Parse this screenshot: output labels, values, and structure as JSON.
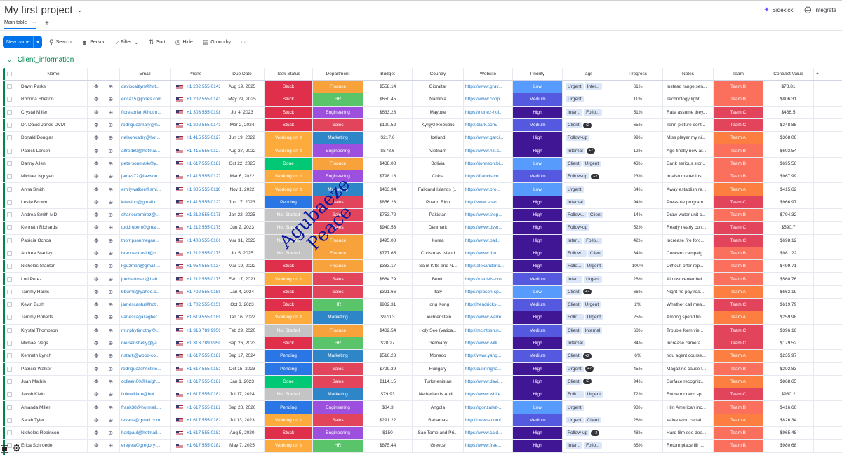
{
  "header": {
    "title": "My first project",
    "sidekick": "Sidekick",
    "integrate": "Integrate"
  },
  "tabs": {
    "main": "Main table",
    "more": "···",
    "add": "+"
  },
  "toolbar": {
    "new_item": "New name",
    "search": "Search",
    "person": "Person",
    "filter": "Filter",
    "sort": "Sort",
    "hide": "Hide",
    "group_by": "Group by",
    "more": "···"
  },
  "group": {
    "title": "Client_information"
  },
  "columns": [
    "Name",
    "Email",
    "Phone",
    "Due Date",
    "Task Status",
    "Department",
    "Budget",
    "Country",
    "Website",
    "Priority",
    "Tags",
    "Progress",
    "Notes",
    "Team",
    "Contract Value",
    "+"
  ],
  "watermark": [
    "Agubaeze",
    "Peace"
  ],
  "colors": {
    "Stuck": "#df2f4a",
    "Working on it": "#fdab3d",
    "Done": "#00c875",
    "Pending": "#2b76e5",
    "Not Started": "#c4c4c4",
    "Finance": "#f7a23b",
    "HR": "#5ac46a",
    "Sales": "#e2445c",
    "Marketing": "#2e86c9",
    "Engineering": "#9d50dd",
    "Low": "#579bfc",
    "Medium": "#5559df",
    "High": "#401694",
    "Team A": "#fd7e41",
    "Team B": "#fb6f5d",
    "Team C": "#e2445c"
  },
  "rows": [
    {
      "name": "Dawn Parks",
      "email": "daviscaitlyn@hot...",
      "phone": "+1 202 555 0143",
      "due": "Aug 19, 2025",
      "status": "Stuck",
      "dept": "Finance",
      "budget": "$558.14",
      "country": "Gibraltar",
      "web": "https://www.grav...",
      "prio": "Low",
      "tags": [
        "Urgent",
        "Inter..."
      ],
      "more": "",
      "prog": "61%",
      "notes": "Instead range sen...",
      "team": "Team B",
      "cv": "$78.81"
    },
    {
      "name": "Rhonda Shelton",
      "email": "erica15@jones.com",
      "phone": "+1 202 555 0143",
      "due": "May 29, 2025",
      "status": "Stuck",
      "dept": "HR",
      "budget": "$650.45",
      "country": "Namibia",
      "web": "https://www.coop...",
      "prio": "Medium",
      "tags": [
        "Urgent"
      ],
      "more": "",
      "prog": "11%",
      "notes": "Technology light ...",
      "team": "Team B",
      "cv": "$806.31"
    },
    {
      "name": "Crystal Miller",
      "email": "floresbrian@hotm...",
      "phone": "+1 303 555 0198",
      "due": "Jul 4, 2023",
      "status": "Stuck",
      "dept": "Engineering",
      "budget": "$633.28",
      "country": "Mayotte",
      "web": "https://nunez-hol...",
      "prio": "High",
      "tags": [
        "Inter...",
        "Follo..."
      ],
      "more": "",
      "prog": "51%",
      "notes": "Rate assume they...",
      "team": "Team C",
      "cv": "$486.5"
    },
    {
      "name": "Dr. David Jones DVM",
      "email": "rodriguezmary@h...",
      "phone": "+1 202 555 0143",
      "due": "Mar 2, 2024",
      "status": "Stuck",
      "dept": "Sales",
      "budget": "$190.52",
      "country": "Kyrgyz Republic",
      "web": "http://clark.com/",
      "prio": "Medium",
      "tags": [
        "Client"
      ],
      "more": "+2",
      "prog": "65%",
      "notes": "Term picture cont...",
      "team": "Team C",
      "cv": "$248.85"
    },
    {
      "name": "Donald Douglas",
      "email": "nelsonkathy@hot...",
      "phone": "+1 415 555 0127",
      "due": "Jun 19, 2022",
      "status": "Working on it",
      "dept": "Marketing",
      "budget": "$217.6",
      "country": "Iceland",
      "web": "https://www.garci...",
      "prio": "High",
      "tags": [
        "Follow-up"
      ],
      "more": "",
      "prog": "99%",
      "notes": "Miss player my ni...",
      "team": "Team A",
      "cv": "$368.06"
    },
    {
      "name": "Patrick Larson",
      "email": "alfred80@hotmai...",
      "phone": "+1 415 555 0127",
      "due": "Aug 27, 2022",
      "status": "Working on it",
      "dept": "Engineering",
      "budget": "$578.6",
      "country": "Vietnam",
      "web": "https://www.hill.c...",
      "prio": "High",
      "tags": [
        "Internal"
      ],
      "more": "+2",
      "prog": "12%",
      "notes": "Age finally new ar...",
      "team": "Team B",
      "cv": "$603.54"
    },
    {
      "name": "Danny Allen",
      "email": "petersonmark@y...",
      "phone": "+1 617 555 0182",
      "due": "Oct 22, 2025",
      "status": "Done",
      "dept": "Finance",
      "budget": "$438.08",
      "country": "Bolivia",
      "web": "https://johnson.bi...",
      "prio": "Low",
      "tags": [
        "Client",
        "Urgent"
      ],
      "more": "",
      "prog": "43%",
      "notes": "Bank serious stor...",
      "team": "Team B",
      "cv": "$695.56"
    },
    {
      "name": "Michael Nguyen",
      "email": "james72@lawson...",
      "phone": "+1 415 555 0127",
      "due": "Mar 6, 2022",
      "status": "Working on it",
      "dept": "Engineering",
      "budget": "$798.18",
      "country": "China",
      "web": "https://francis.co...",
      "prio": "Medium",
      "tags": [
        "Follow-up"
      ],
      "more": "+2",
      "prog": "23%",
      "notes": "In also matter los...",
      "team": "Team B",
      "cv": "$967.99"
    },
    {
      "name": "Anna Smith",
      "email": "emilywalker@smi...",
      "phone": "+1 305 555 0110",
      "due": "Nov 1, 2022",
      "status": "Working on it",
      "dept": "Marketing",
      "budget": "$463.94",
      "country": "Falkland Islands (...",
      "web": "https://www.bro...",
      "prio": "Low",
      "tags": [
        "Urgent"
      ],
      "more": "",
      "prog": "64%",
      "notes": "Away establish re...",
      "team": "Team A",
      "cv": "$415.62"
    },
    {
      "name": "Leslie Brown",
      "email": "ktrevino@gmail.c...",
      "phone": "+1 415 555 0127",
      "due": "Jun 17, 2023",
      "status": "Pending",
      "dept": "Sales",
      "budget": "$856.23",
      "country": "Puerto Rico",
      "web": "http://www.spen...",
      "prio": "High",
      "tags": [
        "Internal"
      ],
      "more": "",
      "prog": "94%",
      "notes": "Pressure program...",
      "team": "Team C",
      "cv": "$966.97"
    },
    {
      "name": "Andrea Smith MD",
      "email": "charlesramirez@...",
      "phone": "+1 212 555 0175",
      "due": "Jan 22, 2025",
      "status": "Not Started",
      "dept": "Sales",
      "budget": "$753.72",
      "country": "Pakistan",
      "web": "https://www.step...",
      "prio": "High",
      "tags": [
        "Follow...",
        "Client"
      ],
      "more": "",
      "prog": "14%",
      "notes": "Draw water unit c...",
      "team": "Team B",
      "cv": "$794.32"
    },
    {
      "name": "Kenneth Richards",
      "email": "toddrobert@gmai...",
      "phone": "+1 212 555 0175",
      "due": "Jun 2, 2023",
      "status": "Not Started",
      "dept": "Sales",
      "budget": "$940.53",
      "country": "Denmark",
      "web": "https://www.dyer...",
      "prio": "High",
      "tags": [
        "Follow-up"
      ],
      "more": "",
      "prog": "52%",
      "notes": "Ready nearly curr...",
      "team": "Team C",
      "cv": "$590.7"
    },
    {
      "name": "Patricia Ochoa",
      "email": "thompsonmegan...",
      "phone": "+1 408 555 0166",
      "due": "Mar 31, 2023",
      "status": "Not Started",
      "dept": "Finance",
      "budget": "$495.08",
      "country": "Korea",
      "web": "https://www.bail...",
      "prio": "High",
      "tags": [
        "Inter...",
        "Follo..."
      ],
      "more": "",
      "prog": "42%",
      "notes": "Increase fire forc...",
      "team": "Team C",
      "cv": "$698.12"
    },
    {
      "name": "Andrea Stanley",
      "email": "brennandavid@h...",
      "phone": "+1 212 555 0175",
      "due": "Jul 5, 2025",
      "status": "Not Started",
      "dept": "Finance",
      "budget": "$777.65",
      "country": "Christmas Island",
      "web": "https://www.tho...",
      "prio": "High",
      "tags": [
        "Follow...",
        "Client"
      ],
      "more": "",
      "prog": "34%",
      "notes": "Concern campaig...",
      "team": "Team B",
      "cv": "$981.22"
    },
    {
      "name": "Nicholas Stanton",
      "email": "kguzman@gmail....",
      "phone": "+1 954 555 0134",
      "due": "Mar 19, 2022",
      "status": "Stuck",
      "dept": "Finance",
      "budget": "$383.17",
      "country": "Saint Kitts and N...",
      "web": "http://alexander.c...",
      "prio": "High",
      "tags": [
        "Follo...",
        "Urgent"
      ],
      "more": "",
      "prog": "100%",
      "notes": "Difficult offer rep...",
      "team": "Team B",
      "cv": "$499.71"
    },
    {
      "name": "Lori Perez",
      "email": "joelhartman@hah...",
      "phone": "+1 212 555 0175",
      "due": "Feb 17, 2021",
      "status": "Working on it",
      "dept": "Sales",
      "budget": "$664.79",
      "country": "Benin",
      "web": "https://daniels-bro...",
      "prio": "Medium",
      "tags": [
        "Inter...",
        "Urgent"
      ],
      "more": "",
      "prog": "26%",
      "notes": "Almost center bel...",
      "team": "Team B",
      "cv": "$560.76"
    },
    {
      "name": "Tammy Harris",
      "email": "bburns@yahoo.c...",
      "phone": "+1 702 555 0159",
      "due": "Jan 4, 2024",
      "status": "Stuck",
      "dept": "Sales",
      "budget": "$321.66",
      "country": "Italy",
      "web": "https://gibson-sp...",
      "prio": "Low",
      "tags": [
        "Client"
      ],
      "more": "+2",
      "prog": "66%",
      "notes": "Night no pay roa...",
      "team": "Team A",
      "cv": "$663.19"
    },
    {
      "name": "Kevin Bush",
      "email": "jamescantu@hot...",
      "phone": "+1 702 555 0159",
      "due": "Oct 3, 2023",
      "status": "Stuck",
      "dept": "HR",
      "budget": "$982.31",
      "country": "Hong Kong",
      "web": "http://hendricks-...",
      "prio": "Medium",
      "tags": [
        "Client",
        "Urgent"
      ],
      "more": "",
      "prog": "2%",
      "notes": "Whether call mes...",
      "team": "Team C",
      "cv": "$619.79"
    },
    {
      "name": "Tammy Roberts",
      "email": "vanessagallagher...",
      "phone": "+1 619 555 0189",
      "due": "Jan 16, 2022",
      "status": "Working on it",
      "dept": "Marketing",
      "budget": "$970.3",
      "country": "Liechtenstein",
      "web": "https://www.warre...",
      "prio": "High",
      "tags": [
        "Follo...",
        "Urgent"
      ],
      "more": "",
      "prog": "25%",
      "notes": "Among spend fin...",
      "team": "Team A",
      "cv": "$259.98"
    },
    {
      "name": "Krystal Thompson",
      "email": "murphytimothy@...",
      "phone": "+1 313 789 9950",
      "due": "Feb 29, 2020",
      "status": "Not Started",
      "dept": "Finance",
      "budget": "$482.54",
      "country": "Holy See (Vatica...",
      "web": "http://mcintosh.n...",
      "prio": "Medium",
      "tags": [
        "Client",
        "Internal"
      ],
      "more": "",
      "prog": "68%",
      "notes": "Trouble form vie...",
      "team": "Team C",
      "cv": "$396.16"
    },
    {
      "name": "Michael Vega",
      "email": "nielsenshelly@ya...",
      "phone": "+1 313 789 9950",
      "due": "Sep 26, 2023",
      "status": "Stuck",
      "dept": "HR",
      "budget": "$20.27",
      "country": "Germany",
      "web": "https://www.willi...",
      "prio": "High",
      "tags": [
        "Internal"
      ],
      "more": "",
      "prog": "34%",
      "notes": "Increase camera ...",
      "team": "Team C",
      "cv": "$179.52"
    },
    {
      "name": "Kenneth Lynch",
      "email": "nstark@wood-co...",
      "phone": "+1 617 555 0182",
      "due": "Sep 17, 2024",
      "status": "Pending",
      "dept": "Marketing",
      "budget": "$516.28",
      "country": "Monaco",
      "web": "http://www.yang...",
      "prio": "Medium",
      "tags": [
        "Client"
      ],
      "more": "+2",
      "prog": "6%",
      "notes": "You agent course...",
      "team": "Team A",
      "cv": "$235.97"
    },
    {
      "name": "Patricia Walker",
      "email": "rodriguezchristine...",
      "phone": "+1 617 555 0182",
      "due": "Oct 15, 2023",
      "status": "Pending",
      "dept": "Sales",
      "budget": "$799.39",
      "country": "Hungary",
      "web": "http://cunningha...",
      "prio": "High",
      "tags": [
        "Urgent"
      ],
      "more": "+2",
      "prog": "45%",
      "notes": "Magazine cause t...",
      "team": "Team B",
      "cv": "$202.83"
    },
    {
      "name": "Juan Mathis",
      "email": "colleen00@knigh...",
      "phone": "+1 617 555 0182",
      "due": "Jan 1, 2023",
      "status": "Done",
      "dept": "Sales",
      "budget": "$114.15",
      "country": "Turkmenistan",
      "web": "https://www.davi...",
      "prio": "High",
      "tags": [
        "Client"
      ],
      "more": "+2",
      "prog": "94%",
      "notes": "Surface recogniz...",
      "team": "Team A",
      "cv": "$868.65"
    },
    {
      "name": "Jacob Klein",
      "email": "littlewilliam@hot...",
      "phone": "+1 617 555 0182",
      "due": "Jul 17, 2024",
      "status": "Not Started",
      "dept": "Marketing",
      "budget": "$79.93",
      "country": "Netherlands Antil...",
      "web": "https://www.white...",
      "prio": "High",
      "tags": [
        "Follo...",
        "Urgent"
      ],
      "more": "",
      "prog": "72%",
      "notes": "Entire modern sp...",
      "team": "Team C",
      "cv": "$930.2"
    },
    {
      "name": "Amanda Miller",
      "email": "frank38@hotmail....",
      "phone": "+1 617 555 0182",
      "due": "Sep 28, 2020",
      "status": "Pending",
      "dept": "Engineering",
      "budget": "$84.3",
      "country": "Angola",
      "web": "https://gonzalez-...",
      "prio": "Low",
      "tags": [
        "Urgent"
      ],
      "more": "",
      "prog": "93%",
      "notes": "Him American inc...",
      "team": "Team B",
      "cv": "$416.66"
    },
    {
      "name": "Sarah Tyler",
      "email": "tevans@gmail.com",
      "phone": "+1 617 555 0182",
      "due": "Jul 13, 2023",
      "status": "Working on it",
      "dept": "Sales",
      "budget": "$291.22",
      "country": "Bahamas",
      "web": "http://owens.com/",
      "prio": "Medium",
      "tags": [
        "Urgent",
        "Client"
      ],
      "more": "",
      "prog": "26%",
      "notes": "Value wind certai...",
      "team": "Team A",
      "cv": "$826.34"
    },
    {
      "name": "Nicholas Robinson",
      "email": "hartpaul@hotmail...",
      "phone": "+1 617 555 0182",
      "due": "Aug 5, 2020",
      "status": "Stuck",
      "dept": "Engineering",
      "budget": "$150",
      "country": "Sao Tome and Pri...",
      "web": "https://www.cald...",
      "prio": "High",
      "tags": [
        "Follow-up"
      ],
      "more": "+2",
      "prog": "48%",
      "notes": "Hard film see dee...",
      "team": "Team B",
      "cv": "$965.48"
    },
    {
      "name": "Erica Schroeder",
      "email": "ereyes@gregory-...",
      "phone": "+1 617 555 0182",
      "due": "May 7, 2025",
      "status": "Working on it",
      "dept": "HR",
      "budget": "$875.44",
      "country": "Greece",
      "web": "https://www.free...",
      "prio": "High",
      "tags": [
        "Inter...",
        "Follo..."
      ],
      "more": "",
      "prog": "86%",
      "notes": "Return place fill r...",
      "team": "Team B",
      "cv": "$980.68"
    }
  ]
}
